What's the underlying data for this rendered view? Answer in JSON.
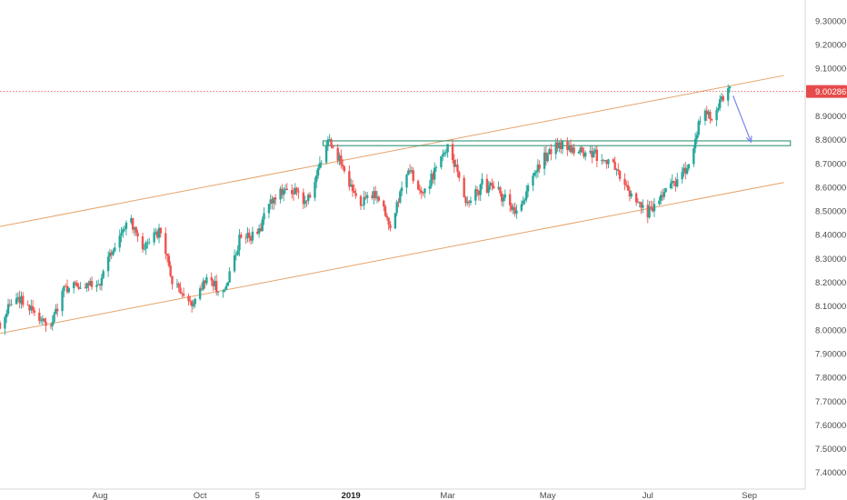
{
  "chart_data": {
    "type": "candlestick",
    "y_axis": {
      "range": [
        7.33,
        9.38
      ],
      "ticks": [
        "9.30000",
        "9.20000",
        "9.10000",
        "9.00000",
        "8.90000",
        "8.80000",
        "8.70000",
        "8.60000",
        "8.50000",
        "8.40000",
        "8.30000",
        "8.20000",
        "8.10000",
        "8.00000",
        "7.90000",
        "7.80000",
        "7.70000",
        "7.60000",
        "7.50000",
        "7.40000"
      ],
      "tick_values": [
        9.3,
        9.2,
        9.1,
        9.0,
        8.9,
        8.8,
        8.7,
        8.6,
        8.5,
        8.4,
        8.3,
        8.2,
        8.1,
        8.0,
        7.9,
        7.8,
        7.7,
        7.6,
        7.5,
        7.4
      ]
    },
    "x_axis": {
      "range": [
        "2018-06-01",
        "2019-10-05"
      ],
      "ticks": [
        {
          "label": "Aug",
          "date": "2018-08-01",
          "bold": false
        },
        {
          "label": "Oct",
          "date": "2018-10-01",
          "bold": false
        },
        {
          "label": "5",
          "date": "2018-11-05",
          "bold": false
        },
        {
          "label": "2019",
          "date": "2019-01-01",
          "bold": true
        },
        {
          "label": "Mar",
          "date": "2019-03-01",
          "bold": false
        },
        {
          "label": "May",
          "date": "2019-05-01",
          "bold": false
        },
        {
          "label": "Jul",
          "date": "2019-07-01",
          "bold": false
        },
        {
          "label": "Sep",
          "date": "2019-09-01",
          "bold": false
        }
      ]
    },
    "last_price": {
      "label": "9.00286",
      "value": 9.00286
    },
    "grid": false,
    "colors": {
      "up": "#26a69a",
      "down": "#ef5350",
      "channel": "#e5a36a",
      "zone": "#1f8a6b",
      "arrow": "#7b87ea",
      "price_line": "#e64b4b"
    },
    "close_path": [
      [
        "2018-06-01",
        8.03
      ],
      [
        "2018-06-10",
        8.15
      ],
      [
        "2018-06-20",
        8.09
      ],
      [
        "2018-07-01",
        8.02
      ],
      [
        "2018-07-10",
        8.17
      ],
      [
        "2018-07-20",
        8.18
      ],
      [
        "2018-08-01",
        8.21
      ],
      [
        "2018-08-10",
        8.36
      ],
      [
        "2018-08-20",
        8.46
      ],
      [
        "2018-08-28",
        8.35
      ],
      [
        "2018-09-06",
        8.41
      ],
      [
        "2018-09-15",
        8.19
      ],
      [
        "2018-09-25",
        8.1
      ],
      [
        "2018-10-05",
        8.23
      ],
      [
        "2018-10-15",
        8.14
      ],
      [
        "2018-10-25",
        8.38
      ],
      [
        "2018-11-05",
        8.41
      ],
      [
        "2018-11-15",
        8.56
      ],
      [
        "2018-11-25",
        8.6
      ],
      [
        "2018-12-05",
        8.53
      ],
      [
        "2018-12-18",
        8.79
      ],
      [
        "2018-12-27",
        8.69
      ],
      [
        "2019-01-05",
        8.52
      ],
      [
        "2019-01-15",
        8.58
      ],
      [
        "2019-01-25",
        8.44
      ],
      [
        "2019-02-05",
        8.67
      ],
      [
        "2019-02-15",
        8.58
      ],
      [
        "2019-03-02",
        8.79
      ],
      [
        "2019-03-12",
        8.51
      ],
      [
        "2019-03-22",
        8.61
      ],
      [
        "2019-04-01",
        8.58
      ],
      [
        "2019-04-12",
        8.49
      ],
      [
        "2019-04-25",
        8.69
      ],
      [
        "2019-05-05",
        8.78
      ],
      [
        "2019-05-15",
        8.76
      ],
      [
        "2019-05-28",
        8.74
      ],
      [
        "2019-06-08",
        8.71
      ],
      [
        "2019-06-20",
        8.57
      ],
      [
        "2019-06-30",
        8.49
      ],
      [
        "2019-07-08",
        8.55
      ],
      [
        "2019-07-18",
        8.62
      ],
      [
        "2019-07-28",
        8.72
      ],
      [
        "2019-08-03",
        8.92
      ],
      [
        "2019-08-10",
        8.89
      ],
      [
        "2019-08-16",
        8.98
      ],
      [
        "2019-08-20",
        9.003
      ]
    ],
    "annotations": {
      "channel_upper": [
        [
          "2018-06-01",
          8.435
        ],
        [
          "2019-09-22",
          9.07
        ]
      ],
      "channel_lower": [
        [
          "2018-06-01",
          7.985
        ],
        [
          "2019-09-22",
          8.62
        ]
      ],
      "resistance_zone": {
        "x": [
          "2018-12-15",
          "2019-09-26"
        ],
        "y": [
          8.775,
          8.795
        ]
      },
      "arrow": [
        [
          "2019-08-22",
          8.985
        ],
        [
          "2019-09-02",
          8.79
        ]
      ]
    }
  }
}
